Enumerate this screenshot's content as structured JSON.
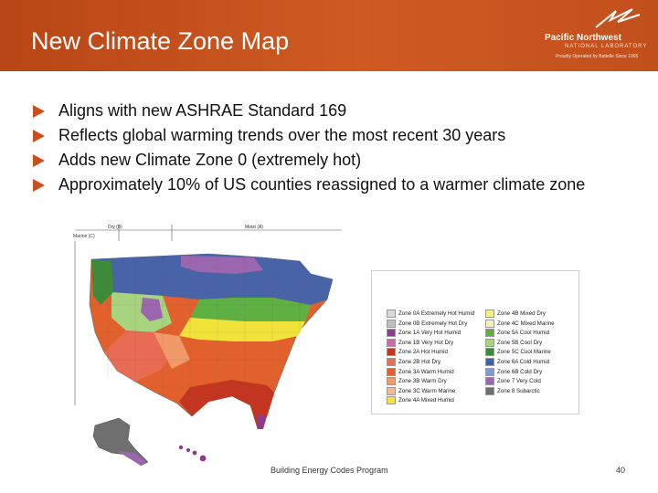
{
  "header": {
    "title": "New Climate Zone Map",
    "logo_name": "Pacific Northwest",
    "logo_lab": "NATIONAL LABORATORY",
    "logo_tagline": "Proudly Operated by Battelle Since 1965"
  },
  "bullets": [
    "Aligns with new ASHRAE Standard 169",
    "Reflects global warming trends over the most recent 30 years",
    "Adds new Climate Zone 0 (extremely hot)",
    "Approximately 10% of US counties reassigned to a warmer climate zone"
  ],
  "map": {
    "label_marine": "Marine (C)",
    "label_dry": "Dry (B)",
    "label_moist": "Moist (A)"
  },
  "legend": {
    "left": [
      {
        "label": "Zone 0A Extremely Hot Humid",
        "color": "#d9d9d9"
      },
      {
        "label": "Zone 0B Extremely Hot Dry",
        "color": "#bfbfbf"
      },
      {
        "label": "Zone 1A Very Hot Humid",
        "color": "#8e3b8f"
      },
      {
        "label": "Zone 1B Very Hot Dry",
        "color": "#c86aa8"
      },
      {
        "label": "Zone 2A Hot Humid",
        "color": "#c4351f"
      },
      {
        "label": "Zone 2B Hot Dry",
        "color": "#e86b54"
      },
      {
        "label": "Zone 3A Warm Humid",
        "color": "#e2602b"
      },
      {
        "label": "Zone 3B Warm Dry",
        "color": "#f09a6a"
      },
      {
        "label": "Zone 3C Warm Marine",
        "color": "#f4b98e"
      },
      {
        "label": "Zone 4A Mixed Humid",
        "color": "#f2e33a"
      }
    ],
    "right": [
      {
        "label": "Zone 4B Mixed Dry",
        "color": "#f7ee8a"
      },
      {
        "label": "Zone 4C Mixed Marine",
        "color": "#f6f2b8"
      },
      {
        "label": "Zone 5A Cool Humid",
        "color": "#5fb043"
      },
      {
        "label": "Zone 5B Cool Dry",
        "color": "#a8d47f"
      },
      {
        "label": "Zone 5C Cool Marine",
        "color": "#3c8a3a"
      },
      {
        "label": "Zone 6A Cold Humid",
        "color": "#3f63ad"
      },
      {
        "label": "Zone 6B Cold Dry",
        "color": "#7f9bd2"
      },
      {
        "label": "Zone 7 Very Cold",
        "color": "#9b66b0"
      },
      {
        "label": "Zone 8 Subarctic",
        "color": "#6f6f6f"
      }
    ]
  },
  "footer": {
    "program": "Building Energy Codes Program",
    "page": "40"
  },
  "colors": {
    "header_bg": "#c8501e",
    "bullet_arrow": "#c8501e"
  }
}
